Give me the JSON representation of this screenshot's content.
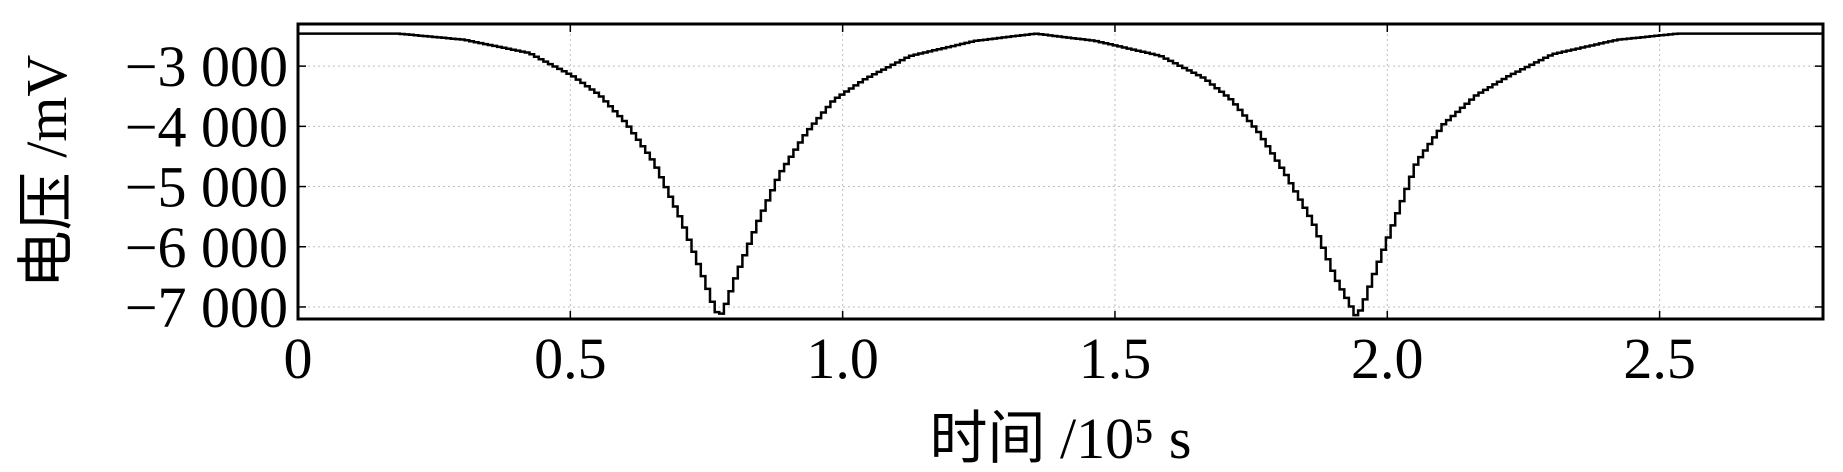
{
  "chart_data": {
    "type": "line",
    "xlabel": "时间 /10⁵ s",
    "ylabel": "电压 /mV",
    "xlim": [
      0,
      2.8
    ],
    "ylim": [
      -7200,
      -2300
    ],
    "x_ticks": [
      {
        "value": 0,
        "label": "0"
      },
      {
        "value": 0.5,
        "label": "0.5"
      },
      {
        "value": 1.0,
        "label": "1.0"
      },
      {
        "value": 1.5,
        "label": "1.5"
      },
      {
        "value": 2.0,
        "label": "2.0"
      },
      {
        "value": 2.5,
        "label": "2.5"
      }
    ],
    "y_ticks": [
      {
        "value": -3000,
        "label": "−3 000"
      },
      {
        "value": -4000,
        "label": "−4 000"
      },
      {
        "value": -5000,
        "label": "−5 000"
      },
      {
        "value": -6000,
        "label": "−6 000"
      },
      {
        "value": -7000,
        "label": "−7 000"
      }
    ],
    "grid": true,
    "line_style": "step",
    "series": [
      {
        "color": "#000000",
        "x": [
          0,
          0.1,
          0.18,
          0.3,
          0.42,
          0.5,
          0.55,
          0.6,
          0.65,
          0.7,
          0.74,
          0.76,
          0.77,
          0.78,
          0.8,
          0.84,
          0.88,
          0.93,
          0.98,
          1.04,
          1.12,
          1.24,
          1.35,
          1.46,
          1.58,
          1.66,
          1.71,
          1.76,
          1.81,
          1.86,
          1.9,
          1.93,
          1.94,
          1.95,
          1.97,
          2.01,
          2.05,
          2.1,
          2.16,
          2.22,
          2.3,
          2.42,
          2.53,
          2.65,
          2.8
        ],
        "y": [
          -2460,
          -2460,
          -2460,
          -2560,
          -2780,
          -3160,
          -3480,
          -3960,
          -4600,
          -5550,
          -6500,
          -7000,
          -7170,
          -7000,
          -6500,
          -5600,
          -4800,
          -4100,
          -3560,
          -3200,
          -2830,
          -2580,
          -2460,
          -2580,
          -2830,
          -3200,
          -3560,
          -4100,
          -4800,
          -5600,
          -6500,
          -7000,
          -7170,
          -7000,
          -6500,
          -5550,
          -4600,
          -3960,
          -3480,
          -3160,
          -2800,
          -2560,
          -2460,
          -2460,
          -2460
        ]
      }
    ]
  }
}
